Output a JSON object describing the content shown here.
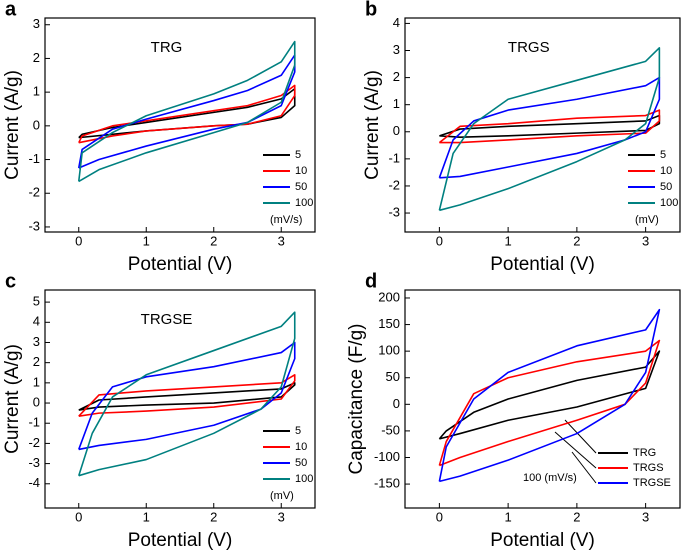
{
  "chart_data": [
    {
      "type": "line",
      "panel": "a",
      "title": "TRG",
      "xlabel": "Potential (V)",
      "ylabel": "Current (A/g)",
      "xlim": [
        -0.5,
        3.5
      ],
      "xticks": [
        0,
        1,
        2,
        3
      ],
      "ylim": [
        -3.15,
        3.2
      ],
      "yticks": [
        -3,
        -2,
        -1,
        0,
        1,
        2,
        3
      ],
      "legend_note": "(mV/s)",
      "series": [
        {
          "name": "5",
          "color": "#000000",
          "x": [
            0,
            0.5,
            1,
            2,
            2.5,
            3,
            3.2,
            3.2,
            3,
            2.5,
            2,
            1,
            0.5,
            0.05,
            0
          ],
          "values": [
            -0.35,
            -0.25,
            -0.15,
            0,
            0.05,
            0.25,
            0.6,
            1.1,
            0.8,
            0.55,
            0.4,
            0.1,
            -0.05,
            -0.25,
            -0.35
          ]
        },
        {
          "name": "10",
          "color": "#ff0000",
          "x": [
            0,
            0.5,
            1,
            2,
            2.5,
            3,
            3.2,
            3.2,
            3,
            2.5,
            2,
            1,
            0.5,
            0.05,
            0
          ],
          "values": [
            -0.5,
            -0.3,
            -0.15,
            0,
            0.05,
            0.3,
            0.9,
            1.2,
            0.9,
            0.6,
            0.45,
            0.15,
            0,
            -0.3,
            -0.5
          ]
        },
        {
          "name": "50",
          "color": "#0000ff",
          "x": [
            0,
            0.3,
            1,
            2,
            2.5,
            3,
            3.2,
            3.2,
            3,
            2.5,
            2,
            1,
            0.5,
            0.05,
            0
          ],
          "values": [
            -1.25,
            -1.0,
            -0.6,
            -0.1,
            0.1,
            0.6,
            1.6,
            2.1,
            1.5,
            1.05,
            0.75,
            0.2,
            -0.1,
            -0.7,
            -1.25
          ]
        },
        {
          "name": "100",
          "color": "#008080",
          "x": [
            0,
            0.3,
            1,
            2,
            2.5,
            3,
            3.2,
            3.2,
            3,
            2.5,
            2,
            1,
            0.5,
            0.05,
            0
          ],
          "values": [
            -1.65,
            -1.3,
            -0.8,
            -0.2,
            0.1,
            0.7,
            1.8,
            2.5,
            1.9,
            1.35,
            0.95,
            0.3,
            -0.2,
            -0.8,
            -1.65
          ]
        }
      ]
    },
    {
      "type": "line",
      "panel": "b",
      "title": "TRGS",
      "xlabel": "Potential (V)",
      "ylabel": "Current (A/g)",
      "xlim": [
        -0.5,
        3.5
      ],
      "xticks": [
        0,
        1,
        2,
        3
      ],
      "ylim": [
        -3.7,
        4.2
      ],
      "yticks": [
        -3,
        -2,
        -1,
        0,
        1,
        2,
        3,
        4
      ],
      "legend_note": "(mV)",
      "series": [
        {
          "name": "5",
          "color": "#000000",
          "x": [
            0,
            0.3,
            1,
            2,
            3,
            3.2,
            3.2,
            3,
            2,
            1,
            0.3,
            0
          ],
          "values": [
            -0.15,
            -0.2,
            -0.15,
            -0.05,
            0.05,
            0.3,
            0.6,
            0.4,
            0.3,
            0.2,
            0.1,
            -0.15
          ]
        },
        {
          "name": "10",
          "color": "#ff0000",
          "x": [
            0,
            0.3,
            1,
            2,
            3,
            3.2,
            3.2,
            3,
            2,
            1,
            0.3,
            0
          ],
          "values": [
            -0.4,
            -0.4,
            -0.3,
            -0.15,
            -0.05,
            0.4,
            0.8,
            0.6,
            0.5,
            0.3,
            0.2,
            -0.4
          ]
        },
        {
          "name": "50",
          "color": "#0000ff",
          "x": [
            0,
            0.3,
            1,
            2,
            2.7,
            3,
            3.2,
            3.2,
            3,
            2,
            1,
            0.5,
            0.2,
            0
          ],
          "values": [
            -1.7,
            -1.65,
            -1.3,
            -0.8,
            -0.3,
            0,
            1.2,
            2.0,
            1.7,
            1.2,
            0.8,
            0.4,
            -0.3,
            -1.7
          ]
        },
        {
          "name": "100",
          "color": "#008080",
          "x": [
            0,
            0.3,
            1,
            2,
            2.7,
            3,
            3.2,
            3.2,
            3,
            2,
            1,
            0.5,
            0.2,
            0
          ],
          "values": [
            -2.9,
            -2.7,
            -2.1,
            -1.1,
            -0.3,
            0.3,
            2.0,
            3.1,
            2.6,
            1.9,
            1.2,
            0.3,
            -0.8,
            -2.9
          ]
        }
      ]
    },
    {
      "type": "line",
      "panel": "c",
      "title": "TRGSE",
      "xlabel": "Potential (V)",
      "ylabel": "Current (A/g)",
      "xlim": [
        -0.5,
        3.5
      ],
      "xticks": [
        0,
        1,
        2,
        3
      ],
      "ylim": [
        -5.2,
        5.6
      ],
      "yticks": [
        -4,
        -3,
        -2,
        -1,
        0,
        1,
        2,
        3,
        4,
        5
      ],
      "legend_note": "(mV)",
      "series": [
        {
          "name": "5",
          "color": "#000000",
          "x": [
            0,
            0.3,
            1,
            2,
            3,
            3.2,
            3.2,
            3,
            2,
            1,
            0.3,
            0
          ],
          "values": [
            -0.35,
            -0.2,
            -0.1,
            0,
            0.3,
            0.9,
            1.0,
            0.7,
            0.5,
            0.3,
            0.15,
            -0.35
          ]
        },
        {
          "name": "10",
          "color": "#ff0000",
          "x": [
            0,
            0.3,
            1,
            2,
            3,
            3.2,
            3.2,
            3,
            2,
            1,
            0.3,
            0
          ],
          "values": [
            -0.65,
            -0.5,
            -0.4,
            -0.2,
            0.2,
            1.1,
            1.4,
            1.0,
            0.8,
            0.6,
            0.4,
            -0.65
          ]
        },
        {
          "name": "50",
          "color": "#0000ff",
          "x": [
            0,
            0.3,
            1,
            2,
            2.7,
            3,
            3.2,
            3.2,
            3,
            2,
            1,
            0.5,
            0.2,
            0
          ],
          "values": [
            -2.3,
            -2.1,
            -1.8,
            -1.1,
            -0.3,
            0.5,
            2.2,
            3.0,
            2.5,
            1.8,
            1.3,
            0.8,
            -0.5,
            -2.3
          ]
        },
        {
          "name": "100",
          "color": "#008080",
          "x": [
            0,
            0.3,
            1,
            2,
            2.7,
            3,
            3.2,
            3.2,
            3,
            2,
            1,
            0.5,
            0.2,
            0
          ],
          "values": [
            -3.6,
            -3.3,
            -2.8,
            -1.5,
            -0.3,
            0.8,
            3.2,
            4.5,
            3.8,
            2.6,
            1.4,
            0.3,
            -1.5,
            -3.6
          ]
        }
      ]
    },
    {
      "type": "line",
      "panel": "d",
      "xlabel": "Potential (V)",
      "ylabel": "Capacitance (F/g)",
      "xlim": [
        -0.5,
        3.5
      ],
      "xticks": [
        0,
        1,
        2,
        3
      ],
      "ylim": [
        -195,
        215
      ],
      "yticks": [
        -150,
        -100,
        -50,
        0,
        50,
        100,
        150,
        200
      ],
      "annotation": "100 (mV/s)",
      "series": [
        {
          "name": "TRG",
          "color": "#000000",
          "x": [
            0,
            0.3,
            1,
            2,
            3,
            3.2,
            3,
            2,
            1,
            0.5,
            0.1,
            0
          ],
          "values": [
            -65,
            -55,
            -30,
            -5,
            30,
            100,
            70,
            45,
            10,
            -15,
            -50,
            -65
          ]
        },
        {
          "name": "TRGS",
          "color": "#ff0000",
          "x": [
            0,
            0.3,
            1,
            2,
            2.7,
            3,
            3.2,
            3,
            2,
            1,
            0.5,
            0.1,
            0
          ],
          "values": [
            -115,
            -100,
            -70,
            -30,
            0,
            40,
            120,
            100,
            80,
            50,
            20,
            -70,
            -115
          ]
        },
        {
          "name": "TRGSE",
          "color": "#0000ff",
          "x": [
            0,
            0.3,
            1,
            2,
            2.7,
            3,
            3.2,
            3,
            2,
            1,
            0.5,
            0.1,
            0
          ],
          "values": [
            -145,
            -135,
            -105,
            -55,
            0,
            60,
            178,
            140,
            110,
            60,
            10,
            -80,
            -145
          ]
        }
      ]
    }
  ]
}
